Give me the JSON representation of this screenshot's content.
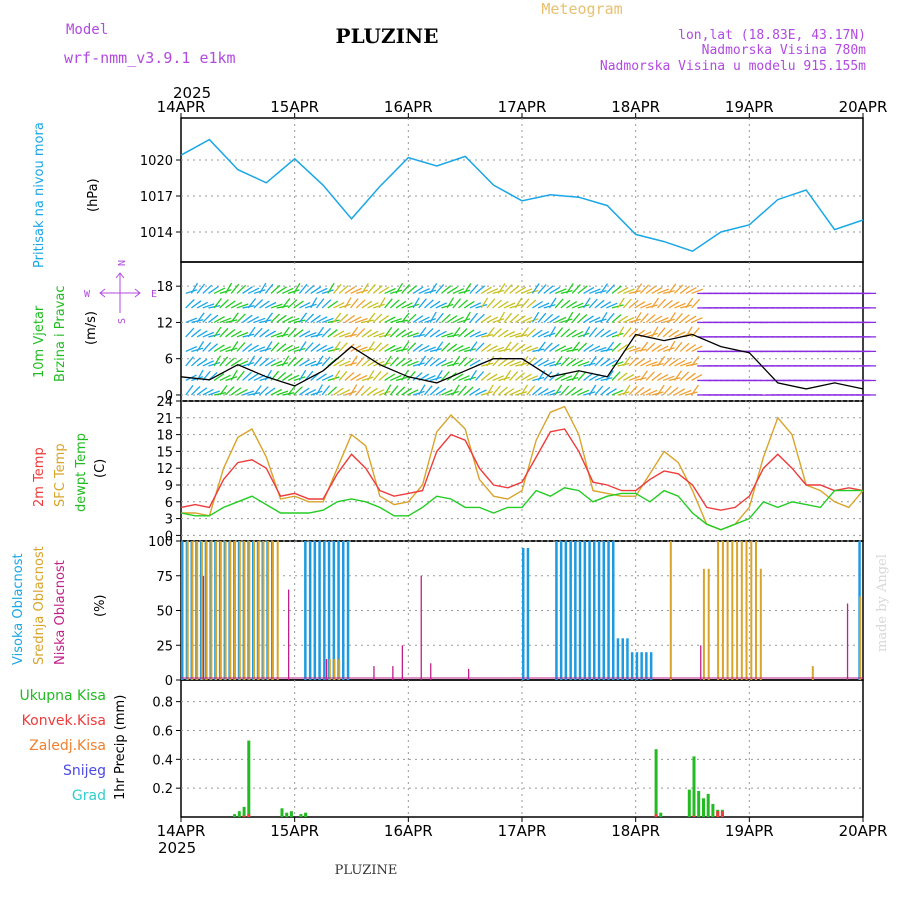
{
  "header": {
    "model_label": "Model",
    "model_name": "wrf-nmm_v3.9.1 e1km",
    "station": "PLUZINE",
    "product": "Meteogram",
    "lonlat": "lon,lat (18.83E, 43.17N)",
    "altitude": "Nadmorska Visina 780m",
    "model_altitude": "Nadmorska Visina u modelu 915.155m",
    "year": "2025",
    "footer_station": "PLUZINE",
    "credit": "made by Angel"
  },
  "x_axis": {
    "ticks": [
      "14APR",
      "15APR",
      "16APR",
      "17APR",
      "18APR",
      "19APR",
      "20APR"
    ]
  },
  "colors": {
    "pressure": "#1aa7e6",
    "wind_speed": "#000000",
    "temp2m": "#ee3b3b",
    "sfc_temp": "#d8a42b",
    "dewpt": "#22cc22",
    "high_cloud": "#1e9be0",
    "mid_cloud": "#d8a42b",
    "low_cloud": "#c0208a",
    "total_precip": "#22bb22",
    "snow": "#4a4ae6",
    "grad": "#33cccc",
    "conv_precip": "#ee3b3b",
    "frozen_precip": "#f08030"
  },
  "panels": {
    "pressure": {
      "label1": "Pritisak na nivou mora",
      "unit": "(hPa)"
    },
    "wind": {
      "label1": "10m Vjetar",
      "label2": "Brzina i Pravac",
      "unit": "(m/s)",
      "compass_w": "W",
      "compass_e": "E",
      "compass_n": "N",
      "compass_s": "S"
    },
    "temp": {
      "label1": "2m Temp",
      "label2": "SFC Temp",
      "label3": "dewpt Temp",
      "unit": "(C)"
    },
    "cloud": {
      "label1": "Visoka Oblacnost",
      "label2": "Srednja Oblacnost",
      "label3": "Niska Oblacnost",
      "unit": "(%)"
    },
    "precip": {
      "label1": "Ukupna Kisa",
      "label2": "Konvek.Kisa",
      "label3": "Zaledj.Kisa",
      "label4": "Snijeg",
      "label5": "Grad",
      "unit": "1hr Precip (mm)"
    }
  },
  "chart_data": [
    {
      "type": "line",
      "name": "pressure",
      "ylim": [
        1011.5,
        1023.5
      ],
      "yticks": [
        1014,
        1017,
        1020
      ],
      "series": [
        {
          "x": [
            0,
            6,
            12,
            18,
            24,
            30,
            36,
            42,
            48,
            54,
            60,
            66,
            72,
            78,
            84,
            90,
            96,
            102,
            108,
            114,
            120,
            126,
            132,
            138,
            144
          ],
          "values": [
            1020.4,
            1021.7,
            1019.2,
            1018.1,
            1020.1,
            1017.9,
            1015.1,
            1017.8,
            1020.2,
            1019.5,
            1020.3,
            1017.9,
            1016.6,
            1017.1,
            1016.9,
            1016.2,
            1013.8,
            1013.2,
            1012.4,
            1014.0,
            1014.6,
            1016.7,
            1017.5,
            1014.2,
            1015.0
          ]
        }
      ]
    },
    {
      "type": "line",
      "name": "wind",
      "ylim": [
        -1,
        22
      ],
      "yticks": [
        0,
        6,
        12,
        18
      ],
      "series": [
        {
          "x": [
            0,
            6,
            12,
            18,
            24,
            30,
            36,
            42,
            48,
            54,
            60,
            66,
            72,
            78,
            84,
            90,
            96,
            102,
            108,
            114,
            120,
            126,
            132,
            138,
            144
          ],
          "values": [
            3,
            2.5,
            5,
            3,
            1.5,
            4,
            8,
            5,
            3,
            2,
            4,
            6,
            6,
            3,
            4,
            3,
            10,
            9,
            10,
            8,
            7,
            2,
            1,
            2,
            1
          ]
        }
      ]
    },
    {
      "type": "line",
      "name": "temperature",
      "ylim": [
        -1,
        24
      ],
      "yticks": [
        0,
        3,
        6,
        9,
        12,
        15,
        18,
        21,
        24
      ],
      "series": [
        {
          "x": [
            0,
            3,
            6,
            9,
            12,
            15,
            18,
            21,
            24,
            27,
            30,
            33,
            36,
            39,
            42,
            45,
            48,
            51,
            54,
            57,
            60,
            63,
            66,
            69,
            72,
            75,
            78,
            81,
            84,
            87,
            90,
            93,
            96,
            99,
            102,
            105,
            108,
            111,
            114,
            117,
            120,
            123,
            126,
            129,
            132,
            135,
            138,
            141,
            144
          ],
          "values": [
            5,
            5.5,
            5,
            10,
            13,
            13.5,
            12,
            7,
            7.5,
            6.5,
            6.5,
            11,
            14.5,
            12,
            8,
            7,
            7.5,
            8,
            15,
            18,
            17,
            12,
            9,
            8.5,
            9.5,
            14,
            18.5,
            19,
            15,
            9.5,
            9,
            8,
            8,
            10,
            11.5,
            11,
            9,
            5,
            4.5,
            5,
            7,
            12,
            14.5,
            12,
            9,
            9,
            8,
            8.5,
            8
          ]
        },
        {
          "x": [
            0,
            3,
            6,
            9,
            12,
            15,
            18,
            21,
            24,
            27,
            30,
            33,
            36,
            39,
            42,
            45,
            48,
            51,
            54,
            57,
            60,
            63,
            66,
            69,
            72,
            75,
            78,
            81,
            84,
            87,
            90,
            93,
            96,
            99,
            102,
            105,
            108,
            111,
            114,
            117,
            120,
            123,
            126,
            129,
            132,
            135,
            138,
            141,
            144
          ],
          "values": [
            4,
            4,
            3.5,
            12,
            17.5,
            19,
            14,
            6.5,
            7,
            6,
            6,
            12,
            18,
            16,
            7,
            5.5,
            6,
            9,
            18.5,
            21.5,
            19,
            10,
            7,
            6.5,
            8,
            17,
            22,
            23,
            18,
            8,
            7.5,
            7,
            7,
            11,
            15,
            13,
            8,
            2,
            1,
            2,
            5,
            14,
            21,
            18,
            9,
            8,
            6,
            5,
            8
          ]
        },
        {
          "x": [
            0,
            3,
            6,
            9,
            12,
            15,
            18,
            21,
            24,
            27,
            30,
            33,
            36,
            39,
            42,
            45,
            48,
            51,
            54,
            57,
            60,
            63,
            66,
            69,
            72,
            75,
            78,
            81,
            84,
            87,
            90,
            93,
            96,
            99,
            102,
            105,
            108,
            111,
            114,
            117,
            120,
            123,
            126,
            129,
            132,
            135,
            138,
            141,
            144
          ],
          "values": [
            4,
            3.5,
            3.5,
            5,
            6,
            7,
            5.5,
            4,
            4,
            4,
            4.5,
            6,
            6.5,
            6,
            5,
            3.5,
            3.5,
            5,
            7,
            6.5,
            5,
            5,
            4,
            5,
            5,
            8,
            7,
            8.5,
            8,
            6,
            7,
            7.5,
            7.5,
            6,
            8,
            7,
            4,
            2,
            1,
            2,
            3,
            6,
            5,
            6,
            5.5,
            5,
            8,
            8,
            8
          ]
        }
      ]
    },
    {
      "type": "bar",
      "name": "cloudiness",
      "ylim": [
        0,
        100
      ],
      "yticks": [
        0,
        25,
        50,
        75,
        100
      ],
      "series": [
        {
          "segments": [
            [
              0,
              12,
              100
            ],
            [
              12,
              20,
              100
            ],
            [
              26,
              36,
              100
            ],
            [
              72,
              74,
              95
            ],
            [
              79,
              92,
              100
            ],
            [
              92,
              95,
              30
            ],
            [
              95,
              100,
              20
            ],
            [
              143,
              144,
              100
            ]
          ]
        },
        {
          "segments": [
            [
              0,
              10,
              100
            ],
            [
              10,
              20,
              100
            ],
            [
              30,
              33,
              15
            ],
            [
              102,
              103,
              100
            ],
            [
              109,
              111,
              80
            ],
            [
              112,
              115,
              100
            ],
            [
              115,
              121,
              100
            ],
            [
              121,
              122,
              80
            ],
            [
              132,
              133,
              10
            ],
            [
              142,
              143,
              60
            ]
          ]
        },
        {
          "segments": [
            [
              4,
              5,
              75
            ],
            [
              22,
              23,
              65
            ],
            [
              30,
              31,
              15
            ],
            [
              40,
              41,
              10
            ],
            [
              44,
              45,
              10
            ],
            [
              46,
              47,
              25
            ],
            [
              50,
              51,
              75
            ],
            [
              52,
              53,
              12
            ],
            [
              60,
              61,
              8
            ],
            [
              109,
              110,
              25
            ],
            [
              140,
              141,
              55
            ]
          ]
        }
      ]
    },
    {
      "type": "bar",
      "name": "precipitation",
      "ylim": [
        0,
        0.95
      ],
      "yticks": [
        0.2,
        0.4,
        0.6,
        0.8
      ],
      "series": [
        {
          "x": [
            11,
            12,
            13,
            14,
            21,
            22,
            23,
            25,
            26,
            100,
            101,
            107,
            108,
            109,
            110,
            111,
            112,
            113,
            114
          ],
          "values": [
            0.02,
            0.04,
            0.07,
            0.53,
            0.06,
            0.03,
            0.04,
            0.02,
            0.03,
            0.47,
            0.03,
            0.19,
            0.42,
            0.18,
            0.13,
            0.16,
            0.09,
            0.05,
            0.05
          ]
        },
        {
          "x": [
            13,
            14,
            100,
            108,
            113,
            114
          ],
          "values": [
            0.01,
            0.02,
            0.02,
            0.01,
            0.04,
            0.04
          ]
        }
      ]
    }
  ]
}
